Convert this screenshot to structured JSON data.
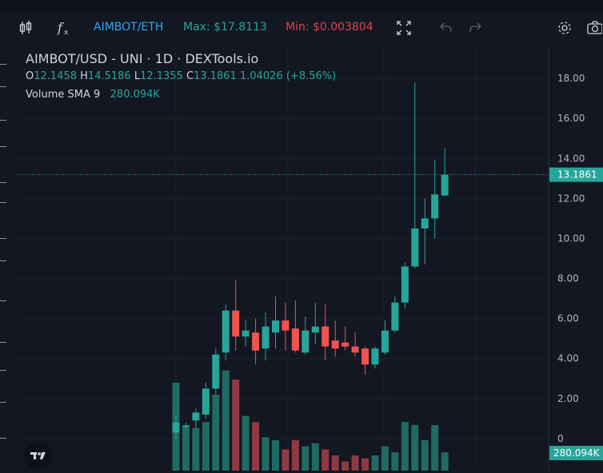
{
  "toolbar": {
    "pair_label": "AIMBOT/ETH",
    "max_label": "Max: $17.8113",
    "min_label": "Min: $0.003804"
  },
  "legend": {
    "title": "AIMBOT/USD - UNI · 1D · DEXTools.io",
    "o_label": "O",
    "o_value": "12.1458",
    "h_label": "H",
    "h_value": "14.5186",
    "l_label": "L",
    "l_value": "12.1355",
    "c_label": "C",
    "c_value": "13.1861",
    "change": "1.04026 (+8.56%)",
    "volume_label": "Volume SMA 9",
    "volume_value": "280.094K"
  },
  "colors": {
    "background": "#131722",
    "up": "#26a69a",
    "down": "#ef5350",
    "up_volume": "#1f6b63",
    "down_volume": "#8e3a45",
    "price_label_bg": "#26a69a"
  },
  "chart_data": {
    "type": "candlestick",
    "price_ticks": [
      "18.00",
      "16.00",
      "14.00",
      "12.00",
      "10.00",
      "8.00",
      "6.00",
      "4.00",
      "2.00",
      "0"
    ],
    "tick_values": [
      18,
      16,
      14,
      12,
      10,
      8,
      6,
      4,
      2,
      0
    ],
    "ylim": [
      -1.6,
      19.6
    ],
    "last_price_label": "13.1861",
    "last_price": 13.1861,
    "volume_label": "280.094K",
    "candles": [
      {
        "o": 0.3,
        "h": 1.2,
        "l": 0.0,
        "c": 0.8,
        "v": 2.9
      },
      {
        "o": 0.6,
        "h": 0.8,
        "l": 0.5,
        "c": 0.65,
        "v": 1.5
      },
      {
        "o": 0.9,
        "h": 1.5,
        "l": 0.5,
        "c": 1.3,
        "v": 1.4
      },
      {
        "o": 1.2,
        "h": 2.8,
        "l": 1.0,
        "c": 2.5,
        "v": 1.6
      },
      {
        "o": 2.5,
        "h": 4.5,
        "l": 2.2,
        "c": 4.2,
        "v": 2.5
      },
      {
        "o": 4.3,
        "h": 6.7,
        "l": 3.9,
        "c": 6.4,
        "v": 3.3
      },
      {
        "o": 6.4,
        "h": 7.9,
        "l": 4.4,
        "c": 5.1,
        "v": 3.0
      },
      {
        "o": 5.1,
        "h": 5.9,
        "l": 4.6,
        "c": 5.4,
        "v": 1.8
      },
      {
        "o": 5.3,
        "h": 6.0,
        "l": 3.7,
        "c": 4.4,
        "v": 1.6
      },
      {
        "o": 4.5,
        "h": 6.3,
        "l": 3.9,
        "c": 5.6,
        "v": 1.1
      },
      {
        "o": 5.3,
        "h": 7.1,
        "l": 4.5,
        "c": 5.9,
        "v": 1.0
      },
      {
        "o": 5.9,
        "h": 6.8,
        "l": 4.4,
        "c": 5.4,
        "v": 0.7
      },
      {
        "o": 5.5,
        "h": 6.9,
        "l": 4.3,
        "c": 4.4,
        "v": 1.0
      },
      {
        "o": 4.3,
        "h": 6.1,
        "l": 4.2,
        "c": 5.4,
        "v": 0.8
      },
      {
        "o": 5.3,
        "h": 6.8,
        "l": 4.7,
        "c": 5.6,
        "v": 0.9
      },
      {
        "o": 5.6,
        "h": 6.7,
        "l": 3.9,
        "c": 4.6,
        "v": 0.7
      },
      {
        "o": 4.9,
        "h": 5.9,
        "l": 4.1,
        "c": 4.5,
        "v": 0.5
      },
      {
        "o": 4.8,
        "h": 5.6,
        "l": 4.4,
        "c": 4.6,
        "v": 0.3
      },
      {
        "o": 4.6,
        "h": 5.3,
        "l": 4.1,
        "c": 4.3,
        "v": 0.5
      },
      {
        "o": 4.5,
        "h": 4.6,
        "l": 3.2,
        "c": 3.7,
        "v": 0.4
      },
      {
        "o": 3.7,
        "h": 4.6,
        "l": 3.5,
        "c": 4.5,
        "v": 0.5
      },
      {
        "o": 4.3,
        "h": 5.9,
        "l": 4.2,
        "c": 5.4,
        "v": 0.8
      },
      {
        "o": 5.4,
        "h": 7.1,
        "l": 5.3,
        "c": 6.8,
        "v": 0.6
      },
      {
        "o": 6.8,
        "h": 8.8,
        "l": 6.5,
        "c": 8.6,
        "v": 1.6
      },
      {
        "o": 8.6,
        "h": 17.8,
        "l": 8.5,
        "c": 10.5,
        "v": 1.5
      },
      {
        "o": 10.5,
        "h": 12.0,
        "l": 8.7,
        "c": 11.0,
        "v": 1.0
      },
      {
        "o": 11.0,
        "h": 13.9,
        "l": 10.0,
        "c": 12.2,
        "v": 1.5
      },
      {
        "o": 12.1458,
        "h": 14.5186,
        "l": 12.1355,
        "c": 13.1861,
        "v": 0.6
      }
    ]
  }
}
